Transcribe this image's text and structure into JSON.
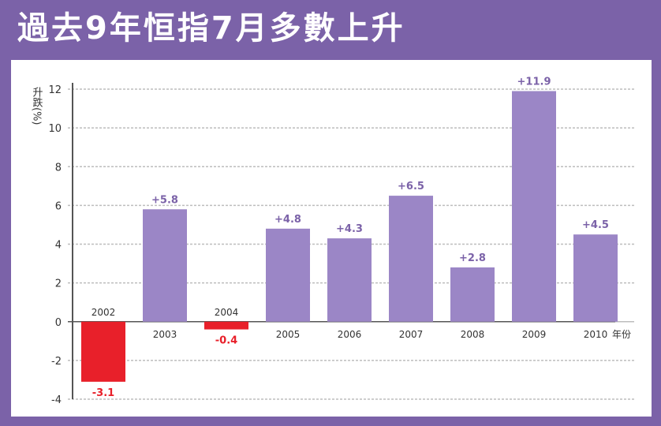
{
  "colors": {
    "frame": "#7b62a8",
    "positive": "#9b86c6",
    "negative": "#e8202a",
    "grid": "#bdbdbd",
    "axis": "#555555"
  },
  "chart_data": {
    "type": "bar",
    "title": "過去9年恒指7月多數上升",
    "ylabel": "升跌(%)",
    "xlabel": "年份",
    "ylim": [
      -4,
      12
    ],
    "yticks": [
      "-4",
      "-2",
      "0",
      "2",
      "4",
      "6",
      "8",
      "10",
      "12"
    ],
    "grid": true,
    "categories": [
      "2002",
      "2003",
      "2004",
      "2005",
      "2006",
      "2007",
      "2008",
      "2009",
      "2010"
    ],
    "values": [
      -3.1,
      5.8,
      -0.4,
      4.8,
      4.3,
      6.5,
      2.8,
      11.9,
      4.5
    ],
    "data_labels": [
      "-3.1",
      "+5.8",
      "-0.4",
      "+4.8",
      "+4.3",
      "+6.5",
      "+2.8",
      "+11.9",
      "+4.5"
    ]
  }
}
